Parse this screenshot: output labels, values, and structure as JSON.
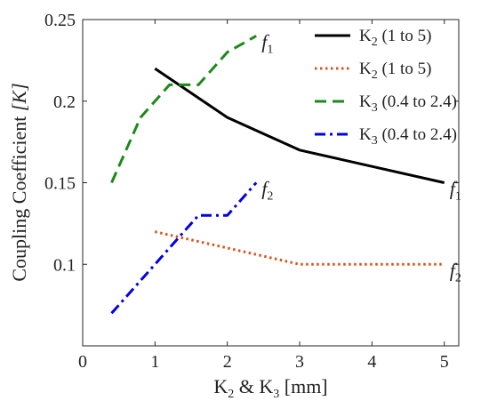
{
  "chart_data": {
    "type": "line",
    "xlabel": {
      "main": "K",
      "sub1": "2",
      "mid": " & K",
      "sub2": "3",
      "tail": " [mm]"
    },
    "ylabel": {
      "main": "Coupling Coefficient ",
      "ital": "[K]"
    },
    "xlim": [
      0,
      5.2
    ],
    "ylim": [
      0.05,
      0.25
    ],
    "xticks": [
      "0",
      "1",
      "2",
      "3",
      "4",
      "5"
    ],
    "xtick_values": [
      0,
      1,
      2,
      3,
      4,
      5
    ],
    "yticks": [
      "0.1",
      "0.15",
      "0.2",
      "0.25"
    ],
    "ytick_values": [
      0.1,
      0.15,
      0.2,
      0.25
    ],
    "grid": false,
    "legend_position": "top-right",
    "series": [
      {
        "name": {
          "main": "K",
          "sub": "2",
          "rest": " (1 to 5)"
        },
        "x": [
          1,
          2,
          3,
          4,
          5
        ],
        "y": [
          0.22,
          0.19,
          0.17,
          0.16,
          0.15
        ],
        "color": "#000000",
        "style": "solid",
        "annotation": {
          "main": "f",
          "sub": "1"
        }
      },
      {
        "name": {
          "main": "K",
          "sub": "2",
          "rest": " (1 to 5)"
        },
        "x": [
          1,
          2,
          3,
          4,
          5
        ],
        "y": [
          0.12,
          0.11,
          0.1,
          0.1,
          0.1
        ],
        "color": "#d9541e",
        "style": "dotted",
        "annotation": {
          "main": "f",
          "sub": "2"
        }
      },
      {
        "name": {
          "main": "K",
          "sub": "3",
          "rest": " (0.4 to 2.4)"
        },
        "x": [
          0.4,
          0.8,
          1.2,
          1.6,
          2.0,
          2.4
        ],
        "y": [
          0.15,
          0.19,
          0.21,
          0.21,
          0.23,
          0.24
        ],
        "color": "#1a8a1a",
        "style": "dashed",
        "annotation": {
          "main": "f",
          "sub": "1"
        }
      },
      {
        "name": {
          "main": "K",
          "sub": "3",
          "rest": " (0.4 to 2.4)"
        },
        "x": [
          0.4,
          0.8,
          1.2,
          1.6,
          2.0,
          2.4
        ],
        "y": [
          0.07,
          0.09,
          0.11,
          0.13,
          0.13,
          0.15
        ],
        "color": "#0000e0",
        "style": "dashdot",
        "annotation": {
          "main": "f",
          "sub": "2"
        }
      }
    ]
  }
}
